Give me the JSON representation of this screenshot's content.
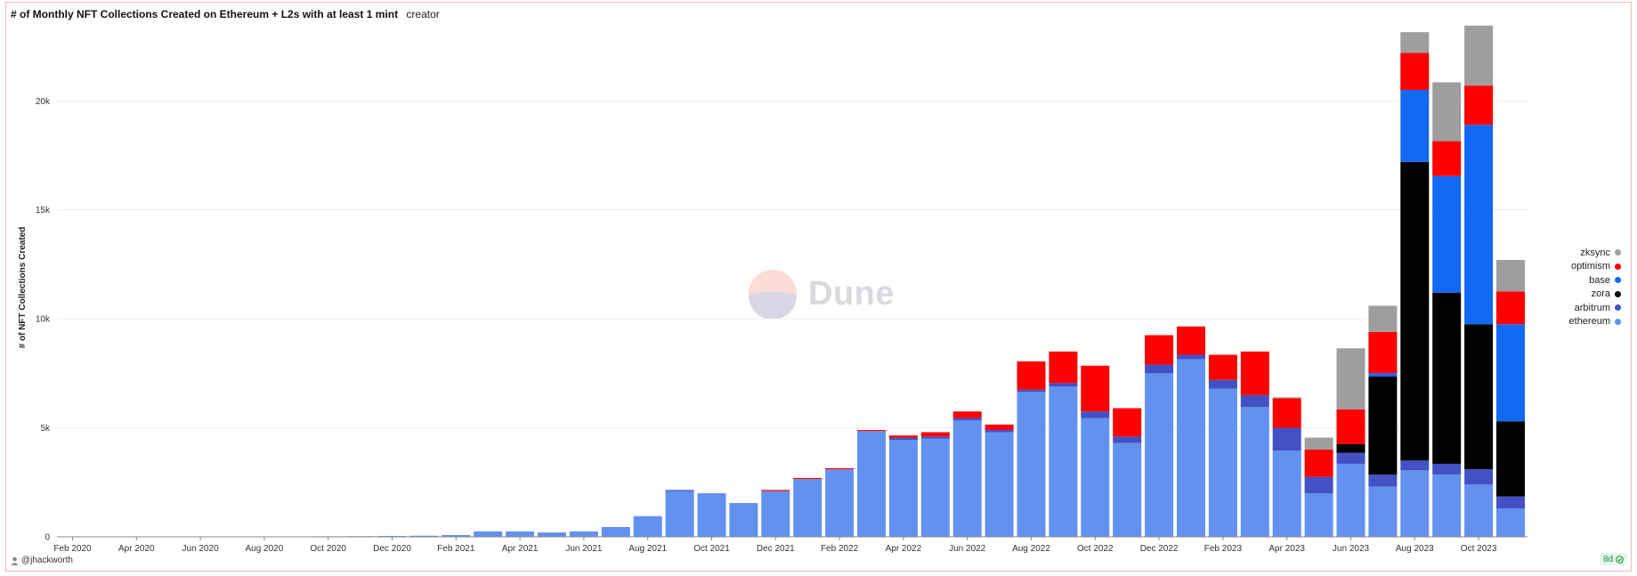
{
  "header": {
    "title": "# of Monthly NFT Collections Created on Ethereum + L2s with at least 1 mint",
    "subtitle": "creator"
  },
  "footer": {
    "author": "@jhackworth",
    "badge": "8d"
  },
  "watermark": {
    "text": "Dune"
  },
  "colors": {
    "ethereum": "#6291f0",
    "arbitrum": "#4351c4",
    "zora": "#000000",
    "base": "#1368f4",
    "optimism": "#ff0000",
    "zksync": "#9e9e9e"
  },
  "chart_data": {
    "type": "bar",
    "stacked": true,
    "ylabel": "# of NFT Collections Created",
    "ylim": [
      0,
      23400
    ],
    "yticks": [
      0,
      5000,
      10000,
      15000,
      20000
    ],
    "ytick_labels": [
      "0",
      "5k",
      "10k",
      "15k",
      "20k"
    ],
    "categories": [
      "Feb 2020",
      "Mar 2020",
      "Apr 2020",
      "May 2020",
      "Jun 2020",
      "Jul 2020",
      "Aug 2020",
      "Sep 2020",
      "Oct 2020",
      "Nov 2020",
      "Dec 2020",
      "Jan 2021",
      "Feb 2021",
      "Mar 2021",
      "Apr 2021",
      "May 2021",
      "Jun 2021",
      "Jul 2021",
      "Aug 2021",
      "Sep 2021",
      "Oct 2021",
      "Nov 2021",
      "Dec 2021",
      "Jan 2022",
      "Feb 2022",
      "Mar 2022",
      "Apr 2022",
      "May 2022",
      "Jun 2022",
      "Jul 2022",
      "Aug 2022",
      "Sep 2022",
      "Oct 2022",
      "Nov 2022",
      "Dec 2022",
      "Jan 2023",
      "Feb 2023",
      "Mar 2023",
      "Apr 2023",
      "May 2023",
      "Jun 2023",
      "Jul 2023",
      "Aug 2023",
      "Sep 2023",
      "Oct 2023",
      "Nov 2023"
    ],
    "xtick_labels": [
      "Feb 2020",
      "Apr 2020",
      "Jun 2020",
      "Aug 2020",
      "Oct 2020",
      "Dec 2020",
      "Feb 2021",
      "Apr 2021",
      "Jun 2021",
      "Aug 2021",
      "Oct 2021",
      "Dec 2021",
      "Feb 2022",
      "Apr 2022",
      "Jun 2022",
      "Aug 2022",
      "Oct 2022",
      "Dec 2022",
      "Feb 2023",
      "Apr 2023",
      "Jun 2023",
      "Aug 2023",
      "Oct 2023"
    ],
    "legend_position": "right",
    "series": [
      {
        "name": "ethereum",
        "values": [
          10,
          15,
          20,
          15,
          20,
          15,
          20,
          20,
          25,
          30,
          40,
          50,
          80,
          250,
          250,
          200,
          250,
          450,
          950,
          2100,
          2000,
          1550,
          2100,
          2650,
          3100,
          4850,
          4450,
          4500,
          5350,
          4800,
          6650,
          6900,
          5450,
          4300,
          7500,
          8150,
          6800,
          5950,
          3950,
          2000,
          3350,
          2300,
          3050,
          2850,
          2400,
          1300
        ]
      },
      {
        "name": "arbitrum",
        "values": [
          0,
          0,
          0,
          0,
          0,
          0,
          0,
          0,
          0,
          0,
          0,
          0,
          0,
          0,
          0,
          0,
          0,
          0,
          0,
          50,
          0,
          0,
          0,
          0,
          0,
          0,
          100,
          100,
          100,
          100,
          100,
          150,
          300,
          300,
          400,
          200,
          400,
          550,
          1050,
          750,
          500,
          550,
          450,
          500,
          700,
          550
        ]
      },
      {
        "name": "zora",
        "values": [
          0,
          0,
          0,
          0,
          0,
          0,
          0,
          0,
          0,
          0,
          0,
          0,
          0,
          0,
          0,
          0,
          0,
          0,
          0,
          0,
          0,
          0,
          0,
          0,
          0,
          0,
          0,
          0,
          0,
          0,
          0,
          0,
          0,
          0,
          0,
          0,
          0,
          0,
          0,
          0,
          400,
          4500,
          13700,
          7850,
          6650,
          3450
        ]
      },
      {
        "name": "base",
        "values": [
          0,
          0,
          0,
          0,
          0,
          0,
          0,
          0,
          0,
          0,
          0,
          0,
          0,
          0,
          0,
          0,
          0,
          0,
          0,
          0,
          0,
          0,
          0,
          0,
          0,
          0,
          0,
          0,
          0,
          0,
          0,
          0,
          0,
          0,
          0,
          0,
          0,
          0,
          0,
          0,
          0,
          150,
          3300,
          5350,
          9150,
          4450
        ]
      },
      {
        "name": "optimism",
        "values": [
          0,
          0,
          0,
          0,
          0,
          0,
          0,
          0,
          0,
          0,
          0,
          0,
          0,
          0,
          0,
          0,
          0,
          0,
          0,
          0,
          0,
          0,
          50,
          50,
          50,
          50,
          100,
          200,
          300,
          250,
          1300,
          1450,
          2100,
          1300,
          1350,
          1300,
          1150,
          2000,
          1350,
          1250,
          1600,
          1900,
          1700,
          1600,
          1800,
          1500
        ]
      },
      {
        "name": "zksync",
        "values": [
          0,
          0,
          0,
          0,
          0,
          0,
          0,
          0,
          0,
          0,
          0,
          0,
          0,
          0,
          0,
          0,
          0,
          0,
          0,
          0,
          0,
          0,
          0,
          0,
          0,
          0,
          0,
          0,
          0,
          0,
          0,
          0,
          0,
          0,
          0,
          0,
          0,
          0,
          50,
          550,
          2800,
          1200,
          950,
          2700,
          2750,
          1450
        ]
      }
    ]
  }
}
